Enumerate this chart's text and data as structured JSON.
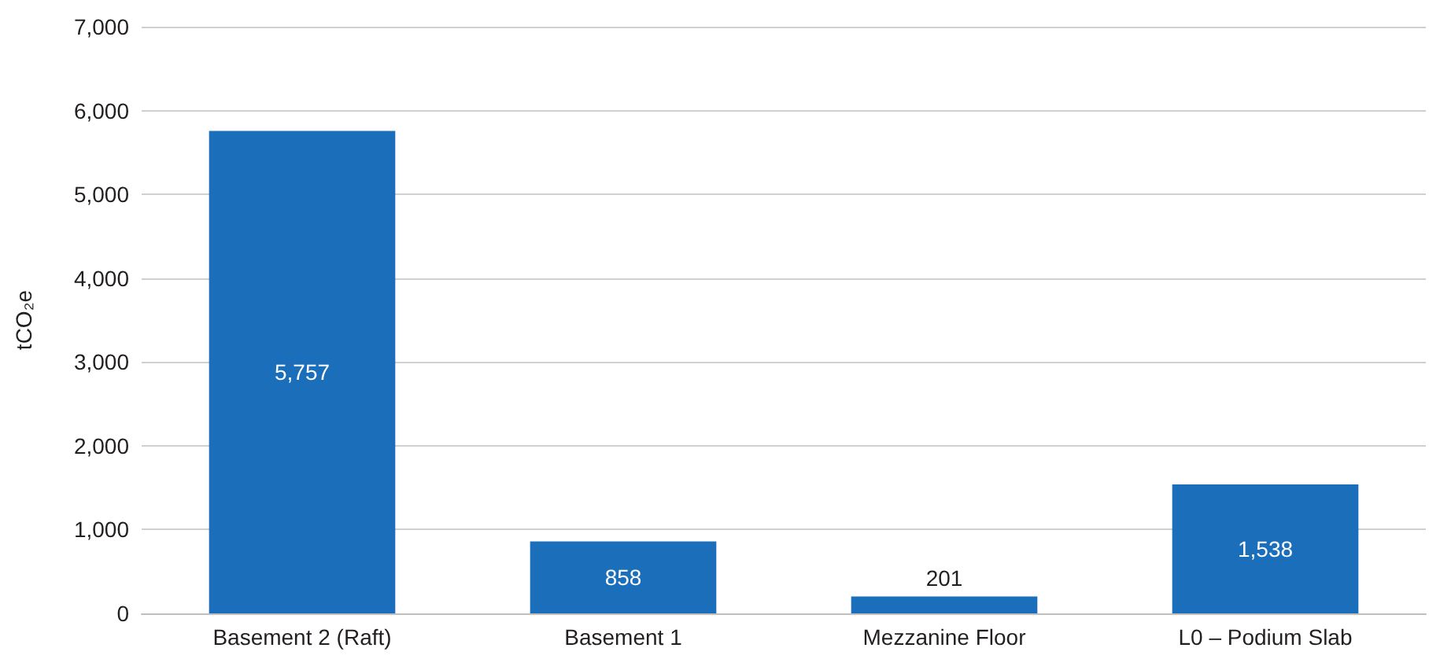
{
  "chart_data": {
    "type": "bar",
    "ylabel": "tCO₂e",
    "categories": [
      "Basement 2 (Raft)",
      "Basement 1",
      "Mezzanine Floor",
      "L0 – Podium Slab"
    ],
    "values": [
      5757,
      858,
      201,
      1538
    ],
    "value_labels": [
      "5,757",
      "858",
      "201",
      "1,538"
    ],
    "color": "#1b6fba",
    "ylim": [
      0,
      7000
    ],
    "yticks": [
      0,
      {
        "value": 1000,
        "label": "1,000"
      },
      {
        "value": 2000,
        "label": "2,000"
      },
      {
        "value": 3000,
        "label": "3,000"
      },
      {
        "value": 4000,
        "label": "4,000"
      },
      {
        "value": 5000,
        "label": "5,000"
      },
      {
        "value": 6000,
        "label": "6,000"
      },
      {
        "value": 7000,
        "label": "7,000"
      }
    ],
    "grid": "y"
  }
}
